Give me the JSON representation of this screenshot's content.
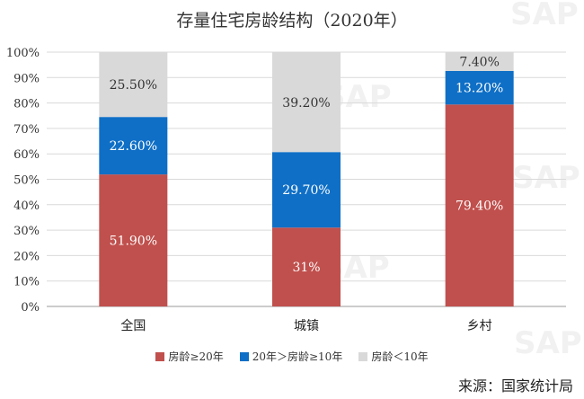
{
  "title": "存量住宅房龄结构（2020年）",
  "source": "来源：国家统计局",
  "watermark": "SAP",
  "colors": {
    "old": "#c0504d",
    "mid": "#0f6fc6",
    "new": "#d9d9d9"
  },
  "chart_data": {
    "type": "bar",
    "stacked": true,
    "title": "存量住宅房龄结构（2020年）",
    "categories": [
      "全国",
      "城镇",
      "乡村"
    ],
    "ylim": [
      0,
      100
    ],
    "yticks": [
      "0%",
      "10%",
      "20%",
      "30%",
      "40%",
      "50%",
      "60%",
      "70%",
      "80%",
      "90%",
      "100%"
    ],
    "grid": true,
    "legend_position": "bottom",
    "series": [
      {
        "name": "房龄≥20年",
        "values": [
          51.9,
          31,
          79.4
        ],
        "labels": [
          "51.90%",
          "31%",
          "79.40%"
        ],
        "color": "#c0504d"
      },
      {
        "name": "20年＞房龄≥10年",
        "values": [
          22.6,
          29.7,
          13.2
        ],
        "labels": [
          "22.60%",
          "29.70%",
          "13.20%"
        ],
        "color": "#0f6fc6"
      },
      {
        "name": "房龄＜10年",
        "values": [
          25.5,
          39.2,
          7.4
        ],
        "labels": [
          "25.50%",
          "39.20%",
          "7.40%"
        ],
        "color": "#d9d9d9"
      }
    ]
  }
}
